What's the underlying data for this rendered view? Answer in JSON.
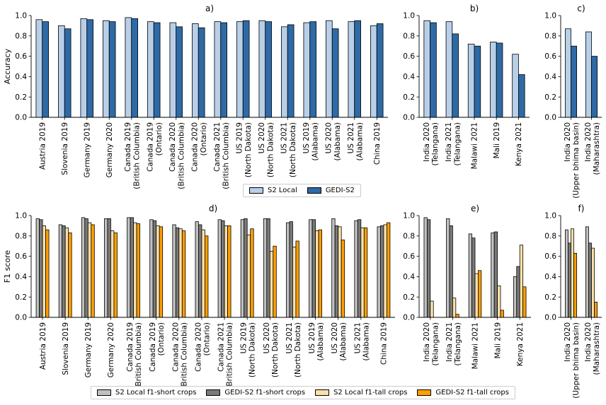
{
  "chart_data": [
    {
      "type": "bar",
      "panel": "a)",
      "ylabel": "Accuracy",
      "ylim": [
        0,
        1
      ],
      "yticks": [
        "0.0",
        "0.2",
        "0.4",
        "0.6",
        "0.8",
        "1.0"
      ],
      "categories": [
        "Austria 2019",
        "Slovenia 2019",
        "Germany 2019",
        "Germany 2020",
        "Canada 2019\n(British Columbia)",
        "Canada 2019\n(Ontario)",
        "Canada 2020\n(British Columbia)",
        "Canada 2020\n(Ontario)",
        "Canada 2021\n(British Columbia)",
        "US 2019\n(North Dakota)",
        "US 2020\n(North Dakota)",
        "US 2021\n(North Dakota)",
        "US 2019\n(Alabama)",
        "US 2020\n(Alabama)",
        "US 2021\n(Alabama)",
        "China 2019"
      ],
      "series": [
        {
          "name": "S2 Local",
          "color": "#b8cfe8",
          "values": [
            0.96,
            0.9,
            0.97,
            0.95,
            0.98,
            0.94,
            0.93,
            0.92,
            0.94,
            0.94,
            0.95,
            0.89,
            0.93,
            0.95,
            0.94,
            0.9
          ]
        },
        {
          "name": "GEDI-S2",
          "color": "#2e6aa6",
          "values": [
            0.94,
            0.87,
            0.96,
            0.94,
            0.97,
            0.93,
            0.89,
            0.88,
            0.93,
            0.95,
            0.94,
            0.91,
            0.94,
            0.87,
            0.95,
            0.92
          ]
        }
      ]
    },
    {
      "type": "bar",
      "panel": "b)",
      "ylim": [
        0,
        1
      ],
      "yticks": [
        "0.0",
        "0.2",
        "0.4",
        "0.6",
        "0.8",
        "1.0"
      ],
      "categories": [
        "India 2020\n(Telangana)",
        "India 2021\n(Telangana)",
        "Malawi 2021",
        "Mali 2019",
        "Kenya 2021"
      ],
      "series": [
        {
          "name": "S2 Local",
          "color": "#b8cfe8",
          "values": [
            0.95,
            0.94,
            0.72,
            0.74,
            0.62
          ]
        },
        {
          "name": "GEDI-S2",
          "color": "#2e6aa6",
          "values": [
            0.93,
            0.82,
            0.7,
            0.73,
            0.42
          ]
        }
      ]
    },
    {
      "type": "bar",
      "panel": "c)",
      "ylim": [
        0,
        1
      ],
      "yticks": [
        "0.0",
        "0.2",
        "0.4",
        "0.6",
        "0.8",
        "1.0"
      ],
      "categories": [
        "India 2020\n(Upper bhima basin)",
        "India 2020\n(Maharashtra)"
      ],
      "series": [
        {
          "name": "S2 Local",
          "color": "#b8cfe8",
          "values": [
            0.87,
            0.84
          ]
        },
        {
          "name": "GEDI-S2",
          "color": "#2e6aa6",
          "values": [
            0.7,
            0.6
          ]
        }
      ]
    },
    {
      "type": "bar",
      "panel": "d)",
      "ylabel": "F1 score",
      "ylim": [
        0,
        1
      ],
      "yticks": [
        "0.0",
        "0.2",
        "0.4",
        "0.6",
        "0.8",
        "1.0"
      ],
      "categories": [
        "Austria 2019",
        "Slovenia 2019",
        "Germany 2019",
        "Germany 2020",
        "Canada 2019\n(British Columbia)",
        "Canada 2019\n(Ontario)",
        "Canada 2020\n(British Columbia)",
        "Canada 2020\n(Ontario)",
        "Canada 2021\n(British Columbia)",
        "US 2019\n(North Dakota)",
        "US 2020\n(North Dakota)",
        "US 2021\n(North Dakota)",
        "US 2019\n(Alabama)",
        "US 2020\n(Alabama)",
        "US 2021\n(Alabama)",
        "China 2019"
      ],
      "series": [
        {
          "name": "S2 Local f1-short crops",
          "color": "#c0c0c0",
          "values": [
            0.97,
            0.91,
            0.98,
            0.97,
            0.98,
            0.96,
            0.91,
            0.94,
            0.96,
            0.96,
            0.97,
            0.93,
            0.96,
            0.97,
            0.95,
            0.89
          ]
        },
        {
          "name": "GEDI-S2 f1-short crops",
          "color": "#7a7a7a",
          "values": [
            0.96,
            0.9,
            0.97,
            0.97,
            0.98,
            0.95,
            0.88,
            0.91,
            0.95,
            0.97,
            0.97,
            0.94,
            0.96,
            0.9,
            0.96,
            0.9
          ]
        },
        {
          "name": "S2 Local f1-tall crops",
          "color": "#fde0a8",
          "values": [
            0.9,
            0.88,
            0.93,
            0.85,
            0.93,
            0.9,
            0.87,
            0.86,
            0.9,
            0.81,
            0.65,
            0.69,
            0.85,
            0.89,
            0.88,
            0.91
          ]
        },
        {
          "name": "GEDI-S2 f1-tall crops",
          "color": "#ff9f00",
          "values": [
            0.86,
            0.83,
            0.91,
            0.83,
            0.92,
            0.89,
            0.85,
            0.8,
            0.9,
            0.87,
            0.7,
            0.75,
            0.86,
            0.76,
            0.88,
            0.93
          ]
        }
      ]
    },
    {
      "type": "bar",
      "panel": "e)",
      "ylim": [
        0,
        1
      ],
      "yticks": [
        "0.0",
        "0.2",
        "0.4",
        "0.6",
        "0.8",
        "1.0"
      ],
      "categories": [
        "India 2020\n(Telangana)",
        "India 2021\n(Telangana)",
        "Malawi 2021",
        "Mali 2019",
        "Kenya 2021"
      ],
      "series": [
        {
          "name": "S2 Local f1-short crops",
          "color": "#c0c0c0",
          "values": [
            0.98,
            0.97,
            0.82,
            0.83,
            0.4
          ]
        },
        {
          "name": "GEDI-S2 f1-short crops",
          "color": "#7a7a7a",
          "values": [
            0.96,
            0.9,
            0.78,
            0.84,
            0.5
          ]
        },
        {
          "name": "S2 Local f1-tall crops",
          "color": "#fde0a8",
          "values": [
            0.16,
            0.19,
            0.43,
            0.31,
            0.71
          ]
        },
        {
          "name": "GEDI-S2 f1-tall crops",
          "color": "#ff9f00",
          "values": [
            0.0,
            0.03,
            0.46,
            0.07,
            0.3
          ]
        }
      ]
    },
    {
      "type": "bar",
      "panel": "f)",
      "ylim": [
        0,
        1
      ],
      "yticks": [
        "0.0",
        "0.2",
        "0.4",
        "0.6",
        "0.8",
        "1.0"
      ],
      "categories": [
        "India 2020\n(Upper bhima basin)",
        "India 2020\n(Maharashtra)"
      ],
      "series": [
        {
          "name": "S2 Local f1-short crops",
          "color": "#c0c0c0",
          "values": [
            0.86,
            0.89
          ]
        },
        {
          "name": "GEDI-S2 f1-short crops",
          "color": "#7a7a7a",
          "values": [
            0.73,
            0.73
          ]
        },
        {
          "name": "S2 Local f1-tall crops",
          "color": "#fde0a8",
          "values": [
            0.87,
            0.68
          ]
        },
        {
          "name": "GEDI-S2 f1-tall crops",
          "color": "#ff9f00",
          "values": [
            0.63,
            0.15
          ]
        }
      ]
    }
  ],
  "legend_top": [
    {
      "label": "S2 Local",
      "color": "#b8cfe8"
    },
    {
      "label": "GEDI-S2",
      "color": "#2e6aa6"
    }
  ],
  "legend_bottom": [
    {
      "label": "S2 Local f1-short crops",
      "color": "#c0c0c0"
    },
    {
      "label": "GEDI-S2 f1-short crops",
      "color": "#7a7a7a"
    },
    {
      "label": "S2 Local f1-tall crops",
      "color": "#fde0a8"
    },
    {
      "label": "GEDI-S2 f1-tall crops",
      "color": "#ff9f00"
    }
  ]
}
